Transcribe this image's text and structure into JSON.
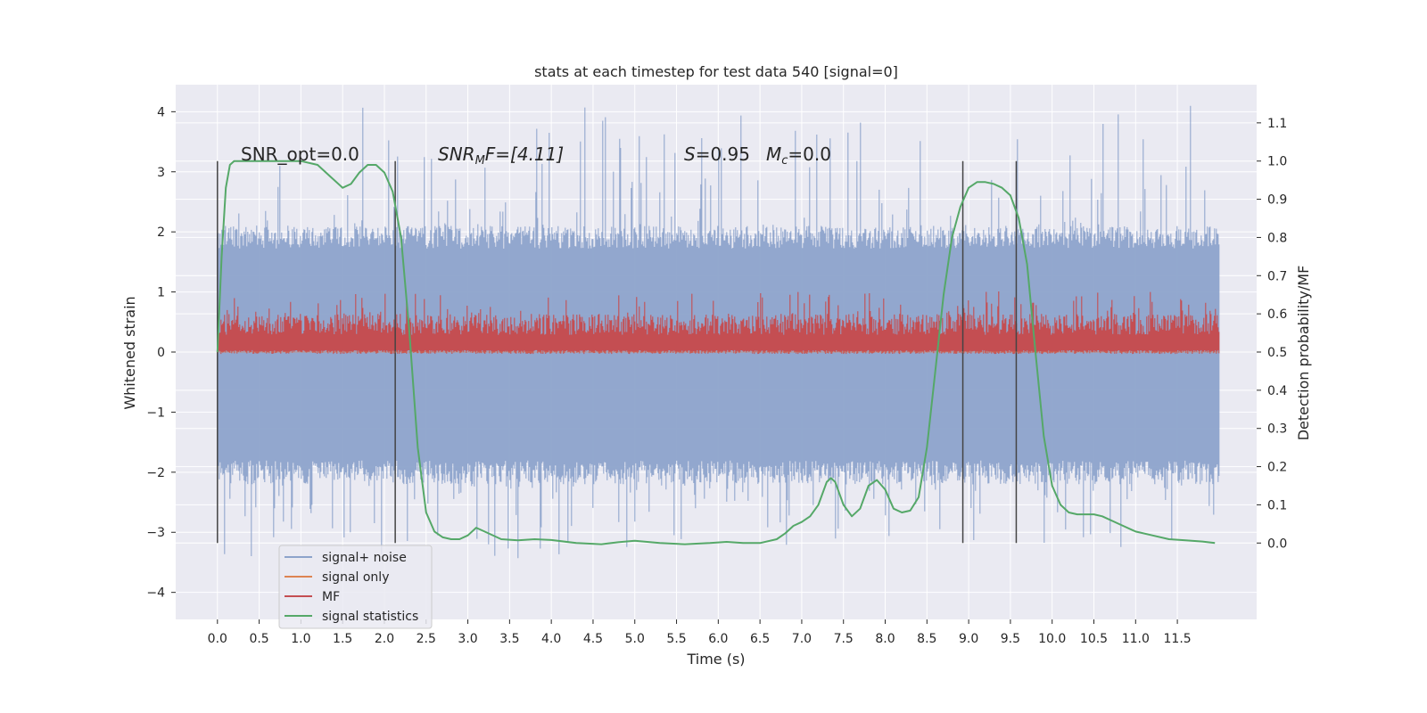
{
  "chart_data": {
    "type": "line",
    "title": "stats at each timestep for test data 540 [signal=0]",
    "xlabel": "Time (s)",
    "ylabel": "Whitened strain",
    "y2label": "Detection probability/MF",
    "xlim": [
      -0.5,
      12.45
    ],
    "ylim": [
      -4.45,
      4.45
    ],
    "y2lim": [
      -0.2,
      1.2
    ],
    "x_ticks": [
      "0.0",
      "0.5",
      "1.0",
      "1.5",
      "2.0",
      "2.5",
      "3.0",
      "3.5",
      "4.0",
      "4.5",
      "5.0",
      "5.5",
      "6.0",
      "6.5",
      "7.0",
      "7.5",
      "8.0",
      "8.5",
      "9.0",
      "9.5",
      "10.0",
      "10.5",
      "11.0",
      "11.5"
    ],
    "y_ticks": [
      {
        "v": 4,
        "label": "4"
      },
      {
        "v": 3,
        "label": "3"
      },
      {
        "v": 2,
        "label": "2"
      },
      {
        "v": 1,
        "label": "1"
      },
      {
        "v": 0,
        "label": "0"
      },
      {
        "v": -1,
        "label": "−1"
      },
      {
        "v": -2,
        "label": "−2"
      },
      {
        "v": -3,
        "label": "−3"
      },
      {
        "v": -4,
        "label": "−4"
      }
    ],
    "y2_ticks": [
      "0.0",
      "0.1",
      "0.2",
      "0.3",
      "0.4",
      "0.5",
      "0.6",
      "0.7",
      "0.8",
      "0.9",
      "1.0",
      "1.1"
    ],
    "grid": true,
    "legend_position": "lower-left",
    "annotations": {
      "snr_opt": "SNR_opt=0.0",
      "snr_mf_label": "SNR",
      "snr_mf_sub": "M",
      "snr_mf_rest": "F=[4.11]",
      "s_label": "S",
      "s_value": "=0.95",
      "mc_label": "M",
      "mc_sub": "c",
      "mc_value": "=0.0"
    },
    "vertical_markers": [
      0.0,
      2.13,
      8.93,
      9.57
    ],
    "colors": {
      "plot_bg": "#eaeaf2",
      "grid": "#ffffff",
      "noise": "#8da3cb",
      "signal_only": "#dd8452",
      "mf": "#c44e52",
      "stats": "#55a868",
      "marker": "#444444"
    },
    "series": [
      {
        "name": "signal+ noise",
        "kind": "strain",
        "envelope": {
          "x_start": 0.0,
          "x_end": 12.0,
          "typical_max": 2.1,
          "typical_min": -2.2,
          "peak_max": 4.1,
          "peak_min": -3.45
        }
      },
      {
        "name": "signal only",
        "kind": "strain",
        "values": "zero"
      },
      {
        "name": "MF",
        "kind": "probability",
        "envelope": {
          "x_start": 0.0,
          "x_end": 12.0,
          "low": 0.5,
          "high": 0.6,
          "peak": 0.66
        }
      },
      {
        "name": "signal statistics",
        "kind": "probability",
        "x": [
          0.0,
          0.05,
          0.1,
          0.15,
          0.2,
          0.3,
          0.5,
          0.8,
          1.0,
          1.2,
          1.35,
          1.5,
          1.6,
          1.7,
          1.8,
          1.9,
          2.0,
          2.1,
          2.2,
          2.3,
          2.4,
          2.5,
          2.6,
          2.7,
          2.8,
          2.9,
          3.0,
          3.1,
          3.2,
          3.4,
          3.6,
          3.8,
          4.0,
          4.3,
          4.6,
          4.8,
          5.0,
          5.3,
          5.6,
          5.9,
          6.1,
          6.3,
          6.5,
          6.7,
          6.8,
          6.9,
          7.0,
          7.1,
          7.2,
          7.3,
          7.35,
          7.4,
          7.5,
          7.6,
          7.7,
          7.8,
          7.9,
          8.0,
          8.1,
          8.2,
          8.3,
          8.4,
          8.5,
          8.6,
          8.7,
          8.8,
          8.9,
          9.0,
          9.1,
          9.2,
          9.3,
          9.4,
          9.5,
          9.6,
          9.7,
          9.8,
          9.9,
          10.0,
          10.1,
          10.2,
          10.3,
          10.4,
          10.5,
          10.6,
          10.8,
          11.0,
          11.2,
          11.4,
          11.6,
          11.8,
          11.95
        ],
        "values": [
          0.5,
          0.75,
          0.93,
          0.99,
          1.0,
          1.0,
          1.0,
          1.0,
          1.0,
          0.99,
          0.96,
          0.93,
          0.94,
          0.97,
          0.99,
          0.99,
          0.97,
          0.92,
          0.8,
          0.55,
          0.25,
          0.08,
          0.03,
          0.015,
          0.01,
          0.01,
          0.02,
          0.04,
          0.03,
          0.01,
          0.007,
          0.01,
          0.008,
          0.0,
          -0.003,
          0.002,
          0.006,
          0.0,
          -0.003,
          0.0,
          0.003,
          0.0,
          0.0,
          0.01,
          0.025,
          0.045,
          0.055,
          0.07,
          0.1,
          0.16,
          0.17,
          0.16,
          0.1,
          0.07,
          0.09,
          0.15,
          0.165,
          0.14,
          0.09,
          0.08,
          0.085,
          0.12,
          0.25,
          0.45,
          0.65,
          0.8,
          0.88,
          0.93,
          0.945,
          0.945,
          0.94,
          0.93,
          0.91,
          0.85,
          0.73,
          0.5,
          0.28,
          0.15,
          0.1,
          0.08,
          0.075,
          0.075,
          0.075,
          0.07,
          0.05,
          0.03,
          0.02,
          0.01,
          0.007,
          0.004,
          0.0
        ]
      }
    ]
  }
}
